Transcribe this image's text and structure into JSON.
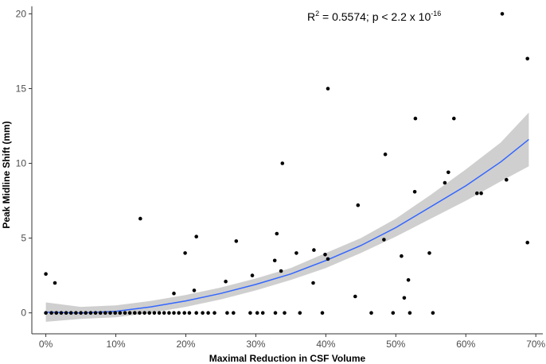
{
  "chart_data": {
    "type": "scatter",
    "title": "",
    "xlabel": "Maximal Reduction in CSF Volume",
    "ylabel": "Peak Midline Shift (mm)",
    "xlim": [
      -2,
      71
    ],
    "ylim": [
      -1.4,
      20.5
    ],
    "x_ticks": [
      0,
      10,
      20,
      30,
      40,
      50,
      60,
      70
    ],
    "x_tick_labels": [
      "0%",
      "10%",
      "20%",
      "30%",
      "40%",
      "50%",
      "60%",
      "70%"
    ],
    "y_ticks": [
      0,
      5,
      10,
      15,
      20
    ],
    "y_tick_labels": [
      "0",
      "5",
      "10",
      "15",
      "20"
    ],
    "grid": false,
    "annotation": {
      "r2_prefix": "R",
      "r2_sup": "2",
      "r2_value": " = 0.5574; p < 2.2 x 10",
      "p_exp": "-16"
    },
    "colors": {
      "points": "#000000",
      "fit_line": "#3366ff",
      "confidence_band": "#bfbfbf"
    },
    "fit": {
      "type": "quadratic",
      "x": [
        0,
        5,
        10,
        15,
        20,
        25,
        30,
        35,
        40,
        45,
        50,
        55,
        60,
        65,
        69
      ],
      "y": [
        0.05,
        0.0,
        0.1,
        0.4,
        0.8,
        1.3,
        1.9,
        2.6,
        3.5,
        4.5,
        5.7,
        7.1,
        8.5,
        10.1,
        11.6
      ],
      "lower": [
        -0.6,
        -0.4,
        -0.3,
        0.0,
        0.4,
        0.9,
        1.5,
        2.2,
        3.0,
        4.0,
        5.1,
        6.3,
        7.5,
        8.8,
        9.8
      ],
      "upper": [
        0.7,
        0.4,
        0.5,
        0.8,
        1.2,
        1.7,
        2.3,
        3.0,
        4.0,
        5.0,
        6.3,
        7.9,
        9.6,
        11.4,
        13.4
      ]
    },
    "points": [
      [
        0,
        2.6
      ],
      [
        1.3,
        2.0
      ],
      [
        13.5,
        6.3
      ],
      [
        19.9,
        4.0
      ],
      [
        21.2,
        1.5
      ],
      [
        21.5,
        5.1
      ],
      [
        18.3,
        1.3
      ],
      [
        25.7,
        2.1
      ],
      [
        27.2,
        4.8
      ],
      [
        29.5,
        2.5
      ],
      [
        32.7,
        3.5
      ],
      [
        33.0,
        5.3
      ],
      [
        33.6,
        2.8
      ],
      [
        33.8,
        10.0
      ],
      [
        35.8,
        4.0
      ],
      [
        38.2,
        2.0
      ],
      [
        38.3,
        4.2
      ],
      [
        39.9,
        3.9
      ],
      [
        40.3,
        3.6
      ],
      [
        40.3,
        15.0
      ],
      [
        44.2,
        1.1
      ],
      [
        44.6,
        7.2
      ],
      [
        48.3,
        4.9
      ],
      [
        48.5,
        10.6
      ],
      [
        50.8,
        3.8
      ],
      [
        51.2,
        1.0
      ],
      [
        51.8,
        2.2
      ],
      [
        52.7,
        8.1
      ],
      [
        52.8,
        13.0
      ],
      [
        54.8,
        4.0
      ],
      [
        57.0,
        8.7
      ],
      [
        57.5,
        9.4
      ],
      [
        58.3,
        13.0
      ],
      [
        61.6,
        8.0
      ],
      [
        62.2,
        8.0
      ],
      [
        65.2,
        20.0
      ],
      [
        65.8,
        8.9
      ],
      [
        68.8,
        17.0
      ],
      [
        68.8,
        4.7
      ],
      [
        0.0,
        0
      ],
      [
        0.8,
        0
      ],
      [
        1.5,
        0
      ],
      [
        2.2,
        0
      ],
      [
        2.9,
        0
      ],
      [
        3.6,
        0
      ],
      [
        4.3,
        0
      ],
      [
        5.0,
        0
      ],
      [
        5.7,
        0
      ],
      [
        6.4,
        0
      ],
      [
        7.1,
        0
      ],
      [
        7.8,
        0
      ],
      [
        8.5,
        0
      ],
      [
        9.2,
        0
      ],
      [
        9.9,
        0
      ],
      [
        10.6,
        0
      ],
      [
        11.3,
        0
      ],
      [
        12.0,
        0
      ],
      [
        12.7,
        0
      ],
      [
        13.4,
        0
      ],
      [
        14.1,
        0
      ],
      [
        14.8,
        0
      ],
      [
        15.5,
        0
      ],
      [
        16.2,
        0
      ],
      [
        16.9,
        0
      ],
      [
        17.6,
        0
      ],
      [
        18.3,
        0
      ],
      [
        19.0,
        0
      ],
      [
        19.8,
        0
      ],
      [
        20.5,
        0
      ],
      [
        21.5,
        0
      ],
      [
        22.4,
        0
      ],
      [
        23.2,
        0
      ],
      [
        24.1,
        0
      ],
      [
        25.9,
        0
      ],
      [
        26.8,
        0
      ],
      [
        29.2,
        0
      ],
      [
        30.2,
        0
      ],
      [
        31.0,
        0
      ],
      [
        32.8,
        0
      ],
      [
        34.1,
        0
      ],
      [
        36.3,
        0
      ],
      [
        39.5,
        0
      ],
      [
        46.5,
        0
      ],
      [
        49.6,
        0
      ],
      [
        52.0,
        0
      ],
      [
        55.3,
        0
      ]
    ]
  }
}
